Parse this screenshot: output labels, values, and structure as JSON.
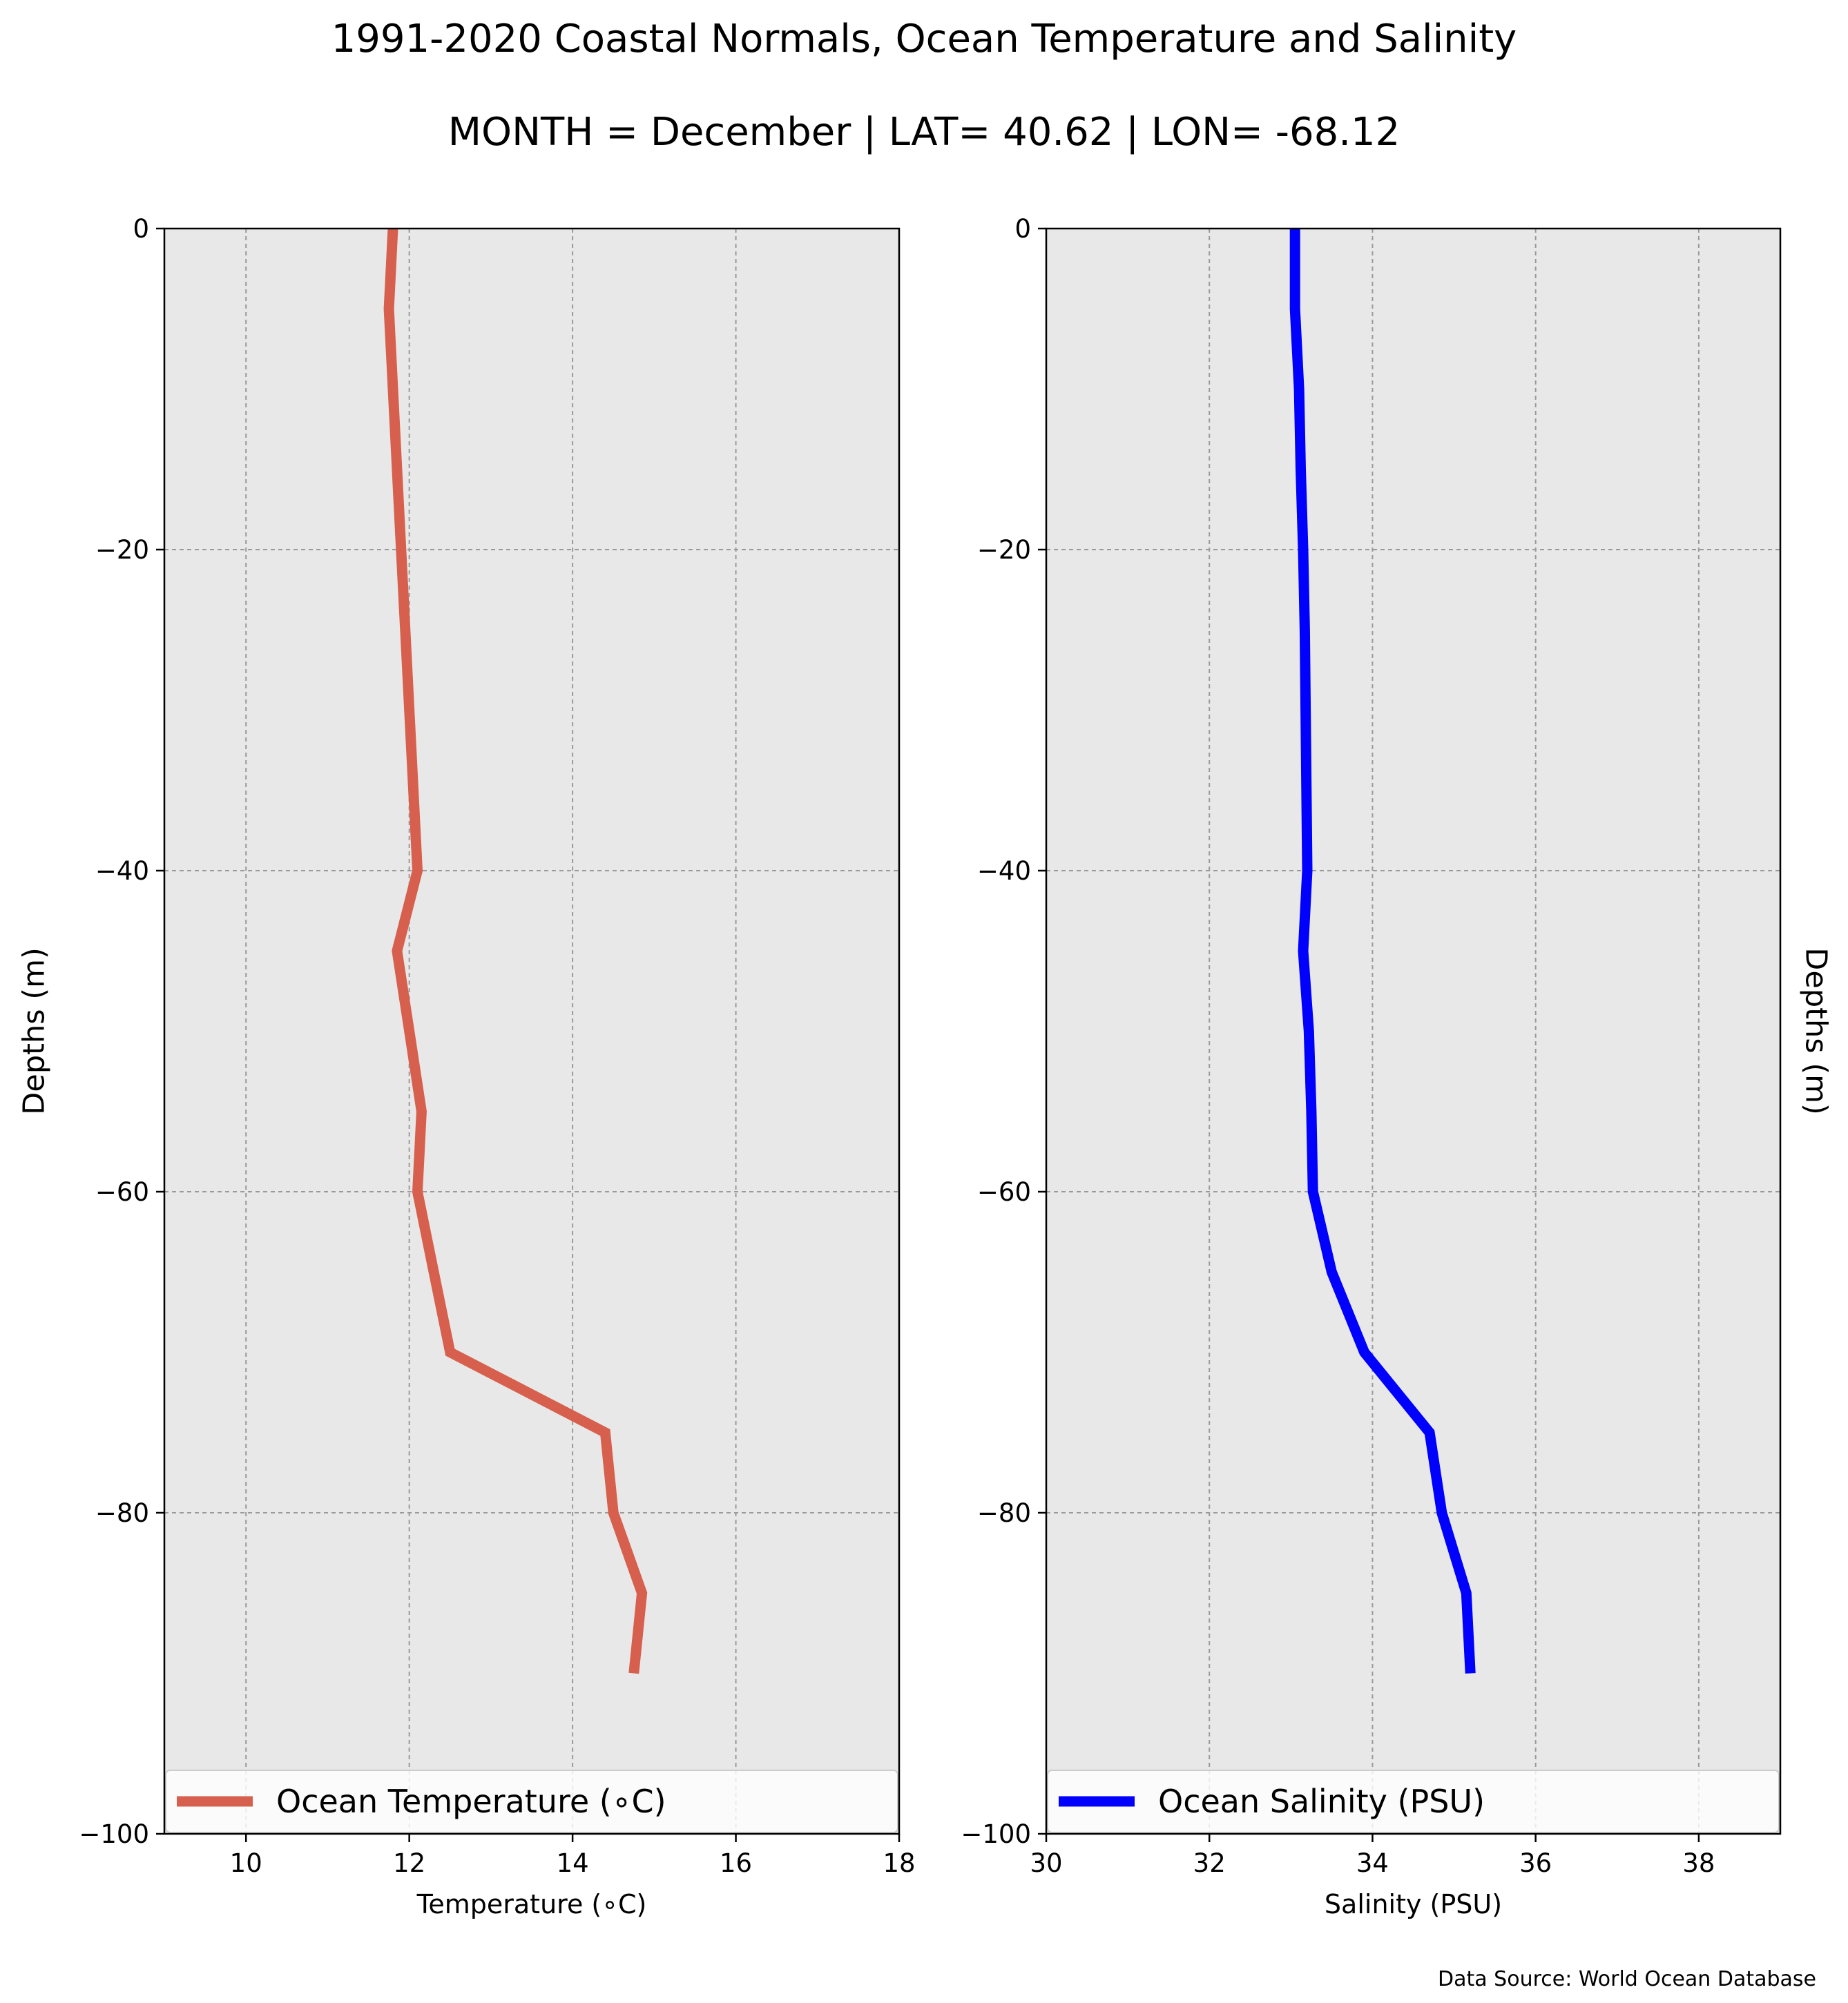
{
  "figure": {
    "title": "1991-2020 Coastal Normals, Ocean Temperature and Salinity",
    "subtitle": "MONTH = December | LAT= 40.62 | LON= -68.12",
    "source": "Data Source: World Ocean Database"
  },
  "colors": {
    "plot_background": "#e8e8e8",
    "grid": "#9a9a9a",
    "temperature_line": "#d6604d",
    "salinity_line": "#0000ff"
  },
  "chart_data": [
    {
      "type": "line",
      "orientation": "vertical-profile",
      "series": [
        {
          "name": "Ocean Temperature ($^\\circ$C)",
          "display_name": "Ocean Temperature (∘C)",
          "color": "#d6604d",
          "x": [
            11.8,
            11.75,
            11.85,
            11.9,
            11.95,
            12.0,
            12.05,
            12.1,
            11.85,
            12.0,
            12.15,
            12.1,
            12.3,
            12.5,
            14.4,
            14.5,
            14.85,
            14.75
          ],
          "y": [
            0,
            -5,
            -15,
            -20,
            -25,
            -30,
            -35,
            -40,
            -45,
            -50,
            -55,
            -60,
            -65,
            -70,
            -75,
            -80,
            -85,
            -90
          ]
        }
      ],
      "xlabel": "Temperature ($^\\circ$C)",
      "xlabel_display": "Temperature (∘C)",
      "ylabel": "Depths (m)",
      "xlim": [
        9,
        18
      ],
      "ylim": [
        -100,
        0
      ],
      "xticks": [
        10,
        12,
        14,
        16,
        18
      ],
      "yticks": [
        0,
        -20,
        -40,
        -60,
        -80,
        -100
      ],
      "ytick_labels": [
        "0",
        "−20",
        "−40",
        "−60",
        "−80",
        "−100"
      ],
      "grid": true,
      "legend": "lower-center"
    },
    {
      "type": "line",
      "orientation": "vertical-profile",
      "series": [
        {
          "name": "Ocean Salinity (PSU)",
          "color": "#0000ff",
          "x": [
            33.05,
            33.05,
            33.1,
            33.12,
            33.15,
            33.17,
            33.18,
            33.2,
            33.15,
            33.22,
            33.25,
            33.27,
            33.5,
            33.9,
            34.7,
            34.85,
            35.15,
            35.2
          ],
          "y": [
            0,
            -5,
            -10,
            -15,
            -20,
            -25,
            -30,
            -40,
            -45,
            -50,
            -55,
            -60,
            -65,
            -70,
            -75,
            -80,
            -85,
            -90
          ]
        }
      ],
      "xlabel": "Salinity (PSU)",
      "ylabel": "Depths (m)",
      "xlim": [
        30,
        39
      ],
      "ylim": [
        -100,
        0
      ],
      "xticks": [
        30,
        32,
        34,
        36,
        38
      ],
      "yticks": [
        0,
        -20,
        -40,
        -60,
        -80,
        -100
      ],
      "ytick_labels": [
        "0",
        "−20",
        "−40",
        "−60",
        "−80",
        "−100"
      ],
      "grid": true,
      "legend": "lower-center"
    }
  ]
}
